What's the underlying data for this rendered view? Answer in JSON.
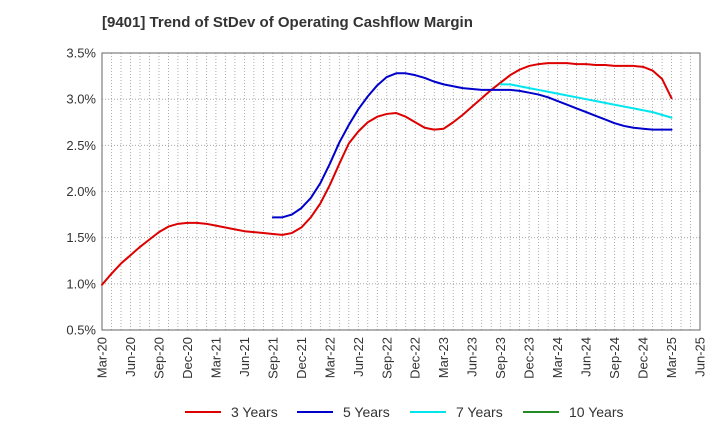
{
  "chart_data": {
    "type": "line",
    "title": "[9401]  Trend of StDev of Operating Cashflow Margin",
    "xlabel": "",
    "ylabel": "",
    "x_ticks": [
      "Mar-20",
      "Jun-20",
      "Sep-20",
      "Dec-20",
      "Mar-21",
      "Jun-21",
      "Sep-21",
      "Dec-21",
      "Mar-22",
      "Jun-22",
      "Sep-22",
      "Dec-22",
      "Mar-23",
      "Jun-23",
      "Sep-23",
      "Dec-23",
      "Mar-24",
      "Jun-24",
      "Sep-24",
      "Dec-24",
      "Mar-25",
      "Jun-25"
    ],
    "y_ticks": [
      "0.5%",
      "1.0%",
      "1.5%",
      "2.0%",
      "2.5%",
      "3.0%",
      "3.5%"
    ],
    "ylim": [
      0.5,
      3.5
    ],
    "grid": true,
    "legend_position": "bottom",
    "series": [
      {
        "name": "3 Years",
        "color": "#dd0000",
        "x": [
          "Mar-20",
          "Apr-20",
          "May-20",
          "Jun-20",
          "Jul-20",
          "Aug-20",
          "Sep-20",
          "Oct-20",
          "Nov-20",
          "Dec-20",
          "Jan-21",
          "Feb-21",
          "Mar-21",
          "Apr-21",
          "May-21",
          "Jun-21",
          "Jul-21",
          "Aug-21",
          "Sep-21",
          "Oct-21",
          "Nov-21",
          "Dec-21",
          "Jan-22",
          "Feb-22",
          "Mar-22",
          "Apr-22",
          "May-22",
          "Jun-22",
          "Jul-22",
          "Aug-22",
          "Sep-22",
          "Oct-22",
          "Nov-22",
          "Dec-22",
          "Jan-23",
          "Feb-23",
          "Mar-23",
          "Apr-23",
          "May-23",
          "Jun-23",
          "Jul-23",
          "Aug-23",
          "Sep-23",
          "Oct-23",
          "Nov-23",
          "Dec-23",
          "Jan-24",
          "Feb-24",
          "Mar-24",
          "Apr-24",
          "May-24",
          "Jun-24",
          "Jul-24",
          "Aug-24",
          "Sep-24",
          "Oct-24",
          "Nov-24",
          "Dec-24",
          "Jan-25",
          "Feb-25",
          "Mar-25"
        ],
        "values": [
          0.99,
          1.11,
          1.22,
          1.31,
          1.4,
          1.48,
          1.56,
          1.62,
          1.65,
          1.66,
          1.66,
          1.65,
          1.63,
          1.61,
          1.59,
          1.57,
          1.56,
          1.55,
          1.54,
          1.53,
          1.55,
          1.61,
          1.72,
          1.87,
          2.07,
          2.3,
          2.52,
          2.65,
          2.75,
          2.81,
          2.84,
          2.85,
          2.81,
          2.75,
          2.69,
          2.67,
          2.68,
          2.75,
          2.83,
          2.92,
          3.01,
          3.1,
          3.18,
          3.26,
          3.32,
          3.36,
          3.38,
          3.39,
          3.39,
          3.39,
          3.38,
          3.38,
          3.37,
          3.37,
          3.36,
          3.36,
          3.36,
          3.35,
          3.31,
          3.22,
          3.01
        ]
      },
      {
        "name": "5 Years",
        "color": "#0000cc",
        "x": [
          "Sep-21",
          "Oct-21",
          "Nov-21",
          "Dec-21",
          "Jan-22",
          "Feb-22",
          "Mar-22",
          "Apr-22",
          "May-22",
          "Jun-22",
          "Jul-22",
          "Aug-22",
          "Sep-22",
          "Oct-22",
          "Nov-22",
          "Dec-22",
          "Jan-23",
          "Feb-23",
          "Mar-23",
          "Apr-23",
          "May-23",
          "Jun-23",
          "Jul-23",
          "Aug-23",
          "Sep-23",
          "Oct-23",
          "Nov-23",
          "Dec-23",
          "Jan-24",
          "Feb-24",
          "Mar-24",
          "Apr-24",
          "May-24",
          "Jun-24",
          "Jul-24",
          "Aug-24",
          "Sep-24",
          "Oct-24",
          "Nov-24",
          "Dec-24",
          "Jan-25",
          "Feb-25",
          "Mar-25"
        ],
        "values": [
          1.72,
          1.72,
          1.75,
          1.82,
          1.93,
          2.09,
          2.3,
          2.53,
          2.72,
          2.89,
          3.03,
          3.15,
          3.24,
          3.28,
          3.28,
          3.26,
          3.23,
          3.19,
          3.16,
          3.14,
          3.12,
          3.11,
          3.1,
          3.1,
          3.1,
          3.1,
          3.09,
          3.07,
          3.05,
          3.02,
          2.98,
          2.94,
          2.9,
          2.86,
          2.82,
          2.78,
          2.74,
          2.71,
          2.69,
          2.68,
          2.67,
          2.67,
          2.67
        ]
      },
      {
        "name": "7 Years",
        "color": "#00e5ee",
        "x": [
          "Sep-23",
          "Oct-23",
          "Nov-23",
          "Dec-23",
          "Jan-24",
          "Feb-24",
          "Mar-24",
          "Apr-24",
          "May-24",
          "Jun-24",
          "Jul-24",
          "Aug-24",
          "Sep-24",
          "Oct-24",
          "Nov-24",
          "Dec-24",
          "Jan-25",
          "Feb-25",
          "Mar-25"
        ],
        "values": [
          3.16,
          3.16,
          3.14,
          3.12,
          3.1,
          3.08,
          3.06,
          3.04,
          3.02,
          3.0,
          2.98,
          2.96,
          2.94,
          2.92,
          2.9,
          2.88,
          2.86,
          2.83,
          2.8
        ]
      },
      {
        "name": "10 Years",
        "color": "#228b22",
        "x": [],
        "values": []
      }
    ]
  }
}
